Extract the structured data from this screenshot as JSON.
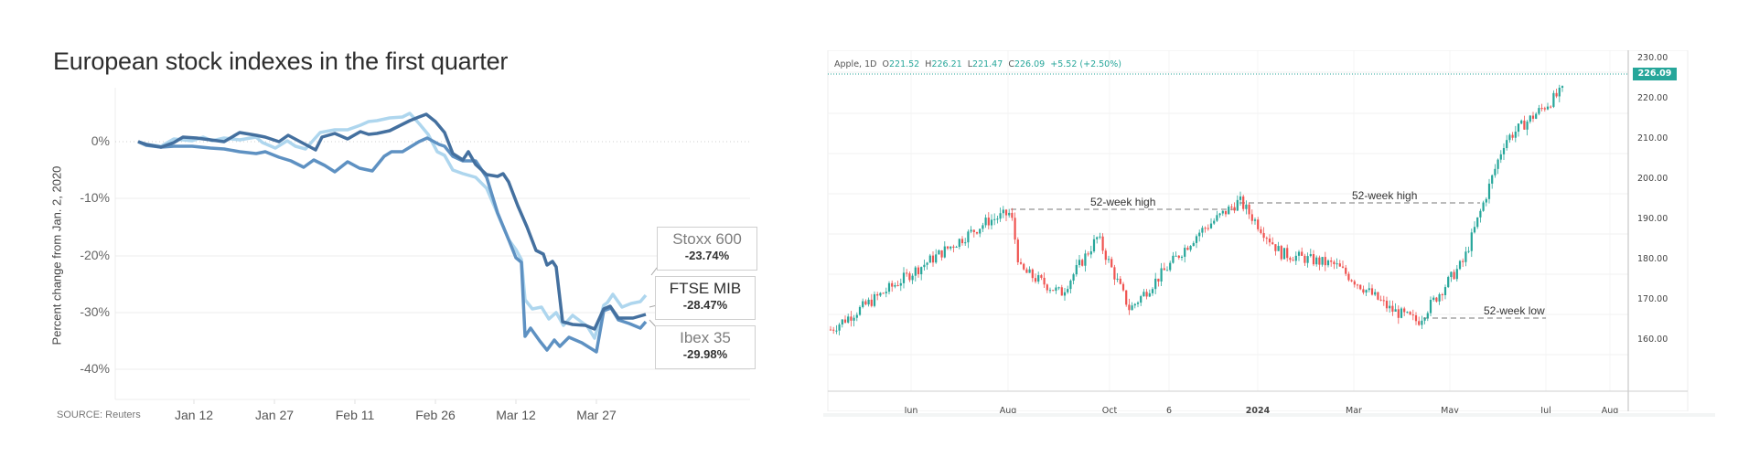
{
  "left_chart": {
    "title": "European stock indexes in the first quarter",
    "ylabel": "Percent change from Jan. 2, 2020",
    "source": "SOURCE: Reuters",
    "yticks": [
      "0%",
      "-10%",
      "-20%",
      "-30%",
      "-40%"
    ],
    "xticks": [
      "Jan 12",
      "Jan 27",
      "Feb 11",
      "Feb 26",
      "Mar 12",
      "Mar 27"
    ],
    "legend": [
      {
        "name": "Stoxx 600",
        "value": "-23.74%",
        "color": "#a9d3ec"
      },
      {
        "name": "FTSE MIB",
        "value": "-28.47%",
        "color": "#3f6fa0"
      },
      {
        "name": "Ibex 35",
        "value": "-29.98%",
        "color": "#5b8fc0"
      }
    ]
  },
  "right_chart": {
    "ohlc": {
      "symbol": "Apple, 1D",
      "open_label": "O",
      "open": "221.52",
      "high_label": "H",
      "high": "226.21",
      "low_label": "L",
      "low": "221.47",
      "close_label": "C",
      "close": "226.09",
      "change": "+5.52 (+2.50%)"
    },
    "last_price": "226.09",
    "yticks": [
      "230.00",
      "220.00",
      "210.00",
      "200.00",
      "190.00",
      "180.00",
      "170.00",
      "160.00"
    ],
    "xticks": [
      "Jun",
      "Aug",
      "Oct",
      "6",
      "2024",
      "Mar",
      "May",
      "Jul",
      "Aug"
    ],
    "annotations": [
      "52-week high",
      "52-week high",
      "52-week low"
    ],
    "colors": {
      "up": "#26a69a",
      "down": "#ef5350"
    }
  },
  "chart_data": [
    {
      "type": "line",
      "title": "European stock indexes in the first quarter",
      "xlabel": "",
      "ylabel": "Percent change from Jan. 2, 2020",
      "ylim": [
        -42,
        8
      ],
      "xtick_labels": [
        "Jan 12",
        "Jan 27",
        "Feb 11",
        "Feb 26",
        "Mar 12",
        "Mar 27"
      ],
      "grid": true,
      "legend_position": "right (end-of-line labels)",
      "source": "SOURCE: Reuters",
      "x": [
        "Jan 2",
        "Jan 6",
        "Jan 10",
        "Jan 14",
        "Jan 17",
        "Jan 21",
        "Jan 24",
        "Jan 28",
        "Jan 31",
        "Feb 4",
        "Feb 7",
        "Feb 11",
        "Feb 14",
        "Feb 19",
        "Feb 21",
        "Feb 24",
        "Feb 26",
        "Feb 28",
        "Mar 3",
        "Mar 6",
        "Mar 9",
        "Mar 11",
        "Mar 12",
        "Mar 13",
        "Mar 16",
        "Mar 18",
        "Mar 20",
        "Mar 23",
        "Mar 24",
        "Mar 26",
        "Mar 27",
        "Mar 31"
      ],
      "series": [
        {
          "name": "Stoxx 600",
          "values": [
            0,
            -1,
            -1,
            0.5,
            0,
            0.5,
            -1,
            0.5,
            -2,
            0,
            3,
            3,
            4,
            4,
            3,
            -4,
            -6,
            -10,
            -8,
            -12,
            -18,
            -20,
            -21,
            -29,
            -31,
            -32,
            -30,
            -32,
            -27,
            -24,
            -26,
            -23.74
          ]
        },
        {
          "name": "FTSE MIB",
          "values": [
            0,
            -1,
            -1,
            1,
            0.5,
            1,
            -1,
            1,
            -2.5,
            -1,
            4,
            4.5,
            5,
            6,
            5,
            -3,
            -5,
            -8,
            -9,
            -15,
            -25,
            -26,
            -37,
            -32,
            -35,
            -33,
            -33,
            -34,
            -27,
            -29,
            -29,
            -28.47
          ]
        },
        {
          "name": "Ibex 35",
          "values": [
            0,
            -1,
            -1,
            -1,
            -1.5,
            -1.5,
            -3,
            -2,
            -4,
            -1,
            1,
            1,
            1,
            2.5,
            2,
            -5,
            -7,
            -10,
            -9,
            -15,
            -26,
            -27,
            -35,
            -33,
            -36,
            -34,
            -34,
            -35,
            -28,
            -29,
            -31,
            -29.98
          ]
        }
      ]
    },
    {
      "type": "candlestick",
      "title": "Apple, 1D",
      "last_bar": {
        "open": 221.52,
        "high": 226.21,
        "low": 221.47,
        "close": 226.09,
        "change": 5.52,
        "change_pct": 2.5
      },
      "ylim": [
        155,
        233
      ],
      "ytick_labels": [
        "160.00",
        "170.00",
        "180.00",
        "190.00",
        "200.00",
        "210.00",
        "220.00",
        "230.00"
      ],
      "xtick_labels": [
        "Jun",
        "Aug",
        "Oct",
        "6",
        "2024",
        "Mar",
        "May",
        "Jul",
        "Aug"
      ],
      "approx_close_path": [
        {
          "x": "May 2023",
          "close": 166
        },
        {
          "x": "Jun 2023",
          "close": 180
        },
        {
          "x": "Jul 2023",
          "close": 193
        },
        {
          "x": "Aug 2023",
          "close": 195
        },
        {
          "x": "Aug 2023 (gap)",
          "close": 181
        },
        {
          "x": "Sep 2023",
          "close": 175
        },
        {
          "x": "Sep 2023 peak",
          "close": 189
        },
        {
          "x": "Oct 2023",
          "close": 171
        },
        {
          "x": "Nov 2023",
          "close": 190
        },
        {
          "x": "Dec 2023",
          "close": 198
        },
        {
          "x": "Jan 2024",
          "close": 185
        },
        {
          "x": "Feb 2024",
          "close": 182
        },
        {
          "x": "Mar 2024",
          "close": 171
        },
        {
          "x": "Apr 2024",
          "close": 168
        },
        {
          "x": "May 2024",
          "close": 183
        },
        {
          "x": "Jun 2024",
          "close": 213
        },
        {
          "x": "Jul 2024",
          "close": 226.09
        }
      ],
      "annotations": [
        {
          "text": "52-week high",
          "level": 197
        },
        {
          "text": "52-week high",
          "level": 199
        },
        {
          "text": "52-week low",
          "level": 164.5
        }
      ],
      "grid": true
    }
  ]
}
